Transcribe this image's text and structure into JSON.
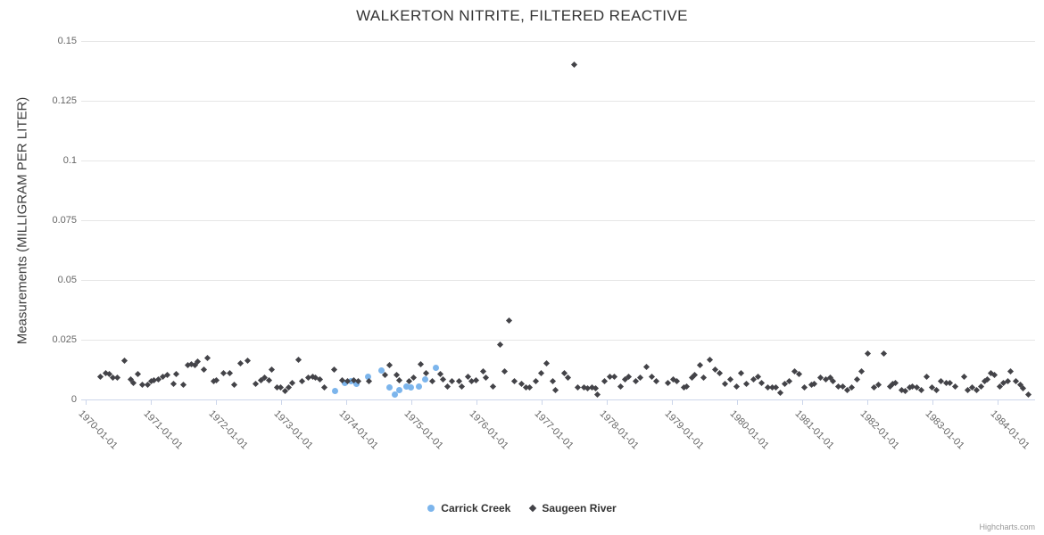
{
  "credits": "Highcharts.com",
  "chart_data": {
    "type": "scatter",
    "title": "WALKERTON NITRITE, FILTERED REACTIVE",
    "xlabel": "",
    "ylabel": "Measurements (MILLIGRAM PER LITER)",
    "ylim": [
      0,
      0.15
    ],
    "yticks": [
      {
        "value": 0,
        "label": "0"
      },
      {
        "value": 0.025,
        "label": "0.025"
      },
      {
        "value": 0.05,
        "label": "0.05"
      },
      {
        "value": 0.075,
        "label": "0.075"
      },
      {
        "value": 0.1,
        "label": "0.1"
      },
      {
        "value": 0.125,
        "label": "0.125"
      },
      {
        "value": 0.15,
        "label": "0.15"
      }
    ],
    "xlim": [
      1969.93,
      1984.58
    ],
    "xticks": [
      {
        "year": 1970,
        "label": "1970-01-01"
      },
      {
        "year": 1971,
        "label": "1971-01-01"
      },
      {
        "year": 1972,
        "label": "1972-01-01"
      },
      {
        "year": 1973,
        "label": "1973-01-01"
      },
      {
        "year": 1974,
        "label": "1974-01-01"
      },
      {
        "year": 1975,
        "label": "1975-01-01"
      },
      {
        "year": 1976,
        "label": "1976-01-01"
      },
      {
        "year": 1977,
        "label": "1977-01-01"
      },
      {
        "year": 1978,
        "label": "1978-01-01"
      },
      {
        "year": 1979,
        "label": "1979-01-01"
      },
      {
        "year": 1980,
        "label": "1980-01-01"
      },
      {
        "year": 1981,
        "label": "1981-01-01"
      },
      {
        "year": 1982,
        "label": "1982-01-01"
      },
      {
        "year": 1983,
        "label": "1983-01-01"
      },
      {
        "year": 1984,
        "label": "1984-01-01"
      }
    ],
    "grid": "horizontal",
    "legend_position": "bottom-center",
    "axis_colors": {
      "gridline": "#e6e6e6",
      "axis_line": "#ccd6eb",
      "tick_label": "#666666"
    },
    "series": [
      {
        "name": "Carrick Creek",
        "marker": "circle",
        "color": "#7cb5ec",
        "points": [
          [
            1973.83,
            0.0037
          ],
          [
            1973.98,
            0.0071
          ],
          [
            1974.07,
            0.0075
          ],
          [
            1974.16,
            0.0064
          ],
          [
            1974.34,
            0.0097
          ],
          [
            1974.54,
            0.0123
          ],
          [
            1974.67,
            0.0049
          ],
          [
            1974.74,
            0.0019
          ],
          [
            1974.82,
            0.0041
          ],
          [
            1974.92,
            0.0056
          ],
          [
            1974.99,
            0.0052
          ],
          [
            1975.12,
            0.0056
          ],
          [
            1975.21,
            0.0086
          ],
          [
            1975.38,
            0.0131
          ]
        ]
      },
      {
        "name": "Saugeen River",
        "marker": "diamond",
        "color": "#434348",
        "points": [
          [
            1970.23,
            0.0097
          ],
          [
            1970.3,
            0.0112
          ],
          [
            1970.36,
            0.0108
          ],
          [
            1970.41,
            0.0093
          ],
          [
            1970.49,
            0.009
          ],
          [
            1970.6,
            0.0164
          ],
          [
            1970.69,
            0.0086
          ],
          [
            1970.73,
            0.0071
          ],
          [
            1970.8,
            0.0108
          ],
          [
            1970.87,
            0.006
          ],
          [
            1970.95,
            0.006
          ],
          [
            1971.0,
            0.0075
          ],
          [
            1971.04,
            0.0082
          ],
          [
            1971.11,
            0.0086
          ],
          [
            1971.18,
            0.0097
          ],
          [
            1971.25,
            0.0104
          ],
          [
            1971.35,
            0.0067
          ],
          [
            1971.39,
            0.0108
          ],
          [
            1971.5,
            0.006
          ],
          [
            1971.57,
            0.0145
          ],
          [
            1971.62,
            0.0149
          ],
          [
            1971.68,
            0.0142
          ],
          [
            1971.72,
            0.0157
          ],
          [
            1971.81,
            0.0127
          ],
          [
            1971.87,
            0.0175
          ],
          [
            1971.96,
            0.0078
          ],
          [
            1972.01,
            0.0082
          ],
          [
            1972.12,
            0.0112
          ],
          [
            1972.21,
            0.0112
          ],
          [
            1972.28,
            0.006
          ],
          [
            1972.38,
            0.0153
          ],
          [
            1972.49,
            0.0164
          ],
          [
            1972.61,
            0.0067
          ],
          [
            1972.69,
            0.0082
          ],
          [
            1972.75,
            0.0093
          ],
          [
            1972.82,
            0.0082
          ],
          [
            1972.86,
            0.0127
          ],
          [
            1972.94,
            0.0052
          ],
          [
            1972.99,
            0.0049
          ],
          [
            1973.06,
            0.0037
          ],
          [
            1973.12,
            0.0052
          ],
          [
            1973.17,
            0.0071
          ],
          [
            1973.26,
            0.0168
          ],
          [
            1973.32,
            0.0078
          ],
          [
            1973.42,
            0.0093
          ],
          [
            1973.48,
            0.0097
          ],
          [
            1973.53,
            0.0093
          ],
          [
            1973.6,
            0.0086
          ],
          [
            1973.67,
            0.0052
          ],
          [
            1973.82,
            0.0127
          ],
          [
            1973.94,
            0.0082
          ],
          [
            1974.02,
            0.0075
          ],
          [
            1974.12,
            0.0082
          ],
          [
            1974.19,
            0.0078
          ],
          [
            1974.35,
            0.0078
          ],
          [
            1974.59,
            0.0104
          ],
          [
            1974.67,
            0.0145
          ],
          [
            1974.77,
            0.0101
          ],
          [
            1974.82,
            0.0082
          ],
          [
            1974.96,
            0.0078
          ],
          [
            1975.04,
            0.009
          ],
          [
            1975.14,
            0.0149
          ],
          [
            1975.22,
            0.0112
          ],
          [
            1975.32,
            0.0078
          ],
          [
            1975.45,
            0.0108
          ],
          [
            1975.49,
            0.0086
          ],
          [
            1975.55,
            0.0056
          ],
          [
            1975.63,
            0.0078
          ],
          [
            1975.73,
            0.0078
          ],
          [
            1975.78,
            0.0056
          ],
          [
            1975.87,
            0.0097
          ],
          [
            1975.92,
            0.0075
          ],
          [
            1976.0,
            0.0082
          ],
          [
            1976.1,
            0.0116
          ],
          [
            1976.15,
            0.009
          ],
          [
            1976.26,
            0.0056
          ],
          [
            1976.36,
            0.0228
          ],
          [
            1976.43,
            0.0116
          ],
          [
            1976.5,
            0.0332
          ],
          [
            1976.58,
            0.0078
          ],
          [
            1976.69,
            0.0064
          ],
          [
            1976.76,
            0.0049
          ],
          [
            1976.81,
            0.0049
          ],
          [
            1976.91,
            0.0075
          ],
          [
            1977.0,
            0.0112
          ],
          [
            1977.07,
            0.0153
          ],
          [
            1977.17,
            0.0075
          ],
          [
            1977.22,
            0.0041
          ],
          [
            1977.35,
            0.0112
          ],
          [
            1977.4,
            0.0093
          ],
          [
            1977.5,
            0.14
          ],
          [
            1977.55,
            0.0052
          ],
          [
            1977.65,
            0.0049
          ],
          [
            1977.7,
            0.0045
          ],
          [
            1977.77,
            0.0049
          ],
          [
            1977.83,
            0.0045
          ],
          [
            1977.86,
            0.0022
          ],
          [
            1977.97,
            0.0078
          ],
          [
            1978.05,
            0.0097
          ],
          [
            1978.12,
            0.0097
          ],
          [
            1978.21,
            0.0056
          ],
          [
            1978.28,
            0.0086
          ],
          [
            1978.34,
            0.0097
          ],
          [
            1978.45,
            0.0075
          ],
          [
            1978.52,
            0.009
          ],
          [
            1978.61,
            0.0138
          ],
          [
            1978.69,
            0.0097
          ],
          [
            1978.76,
            0.0078
          ],
          [
            1978.94,
            0.0071
          ],
          [
            1979.02,
            0.0086
          ],
          [
            1979.08,
            0.0078
          ],
          [
            1979.18,
            0.0049
          ],
          [
            1979.23,
            0.0056
          ],
          [
            1979.31,
            0.009
          ],
          [
            1979.35,
            0.0104
          ],
          [
            1979.44,
            0.0142
          ],
          [
            1979.49,
            0.009
          ],
          [
            1979.59,
            0.0168
          ],
          [
            1979.66,
            0.0127
          ],
          [
            1979.74,
            0.0112
          ],
          [
            1979.82,
            0.0067
          ],
          [
            1979.9,
            0.0086
          ],
          [
            1980.0,
            0.0056
          ],
          [
            1980.07,
            0.0112
          ],
          [
            1980.14,
            0.0064
          ],
          [
            1980.26,
            0.0086
          ],
          [
            1980.33,
            0.0097
          ],
          [
            1980.38,
            0.0071
          ],
          [
            1980.48,
            0.0052
          ],
          [
            1980.55,
            0.0049
          ],
          [
            1980.6,
            0.0049
          ],
          [
            1980.67,
            0.003
          ],
          [
            1980.73,
            0.0067
          ],
          [
            1980.81,
            0.0075
          ],
          [
            1980.89,
            0.0116
          ],
          [
            1980.95,
            0.0108
          ],
          [
            1981.03,
            0.0052
          ],
          [
            1981.14,
            0.006
          ],
          [
            1981.19,
            0.0067
          ],
          [
            1981.28,
            0.009
          ],
          [
            1981.36,
            0.0086
          ],
          [
            1981.43,
            0.009
          ],
          [
            1981.48,
            0.0078
          ],
          [
            1981.56,
            0.0056
          ],
          [
            1981.62,
            0.0056
          ],
          [
            1981.69,
            0.0041
          ],
          [
            1981.76,
            0.0052
          ],
          [
            1981.85,
            0.0086
          ],
          [
            1981.92,
            0.0116
          ],
          [
            1982.01,
            0.0194
          ],
          [
            1982.1,
            0.0049
          ],
          [
            1982.17,
            0.006
          ],
          [
            1982.25,
            0.0194
          ],
          [
            1982.35,
            0.0056
          ],
          [
            1982.39,
            0.0064
          ],
          [
            1982.44,
            0.0071
          ],
          [
            1982.53,
            0.0041
          ],
          [
            1982.58,
            0.0037
          ],
          [
            1982.65,
            0.0049
          ],
          [
            1982.7,
            0.0056
          ],
          [
            1982.76,
            0.0052
          ],
          [
            1982.83,
            0.0041
          ],
          [
            1982.91,
            0.0097
          ],
          [
            1982.99,
            0.0049
          ],
          [
            1983.06,
            0.0041
          ],
          [
            1983.13,
            0.0078
          ],
          [
            1983.21,
            0.0071
          ],
          [
            1983.27,
            0.0071
          ],
          [
            1983.35,
            0.0056
          ],
          [
            1983.49,
            0.0097
          ],
          [
            1983.54,
            0.0041
          ],
          [
            1983.62,
            0.0052
          ],
          [
            1983.68,
            0.0041
          ],
          [
            1983.75,
            0.0056
          ],
          [
            1983.8,
            0.0075
          ],
          [
            1983.84,
            0.0086
          ],
          [
            1983.9,
            0.0112
          ],
          [
            1983.95,
            0.0101
          ],
          [
            1984.04,
            0.0056
          ],
          [
            1984.09,
            0.0071
          ],
          [
            1984.16,
            0.0075
          ],
          [
            1984.2,
            0.0116
          ],
          [
            1984.29,
            0.0075
          ],
          [
            1984.35,
            0.006
          ],
          [
            1984.4,
            0.0045
          ],
          [
            1984.47,
            0.0019
          ]
        ]
      }
    ]
  }
}
